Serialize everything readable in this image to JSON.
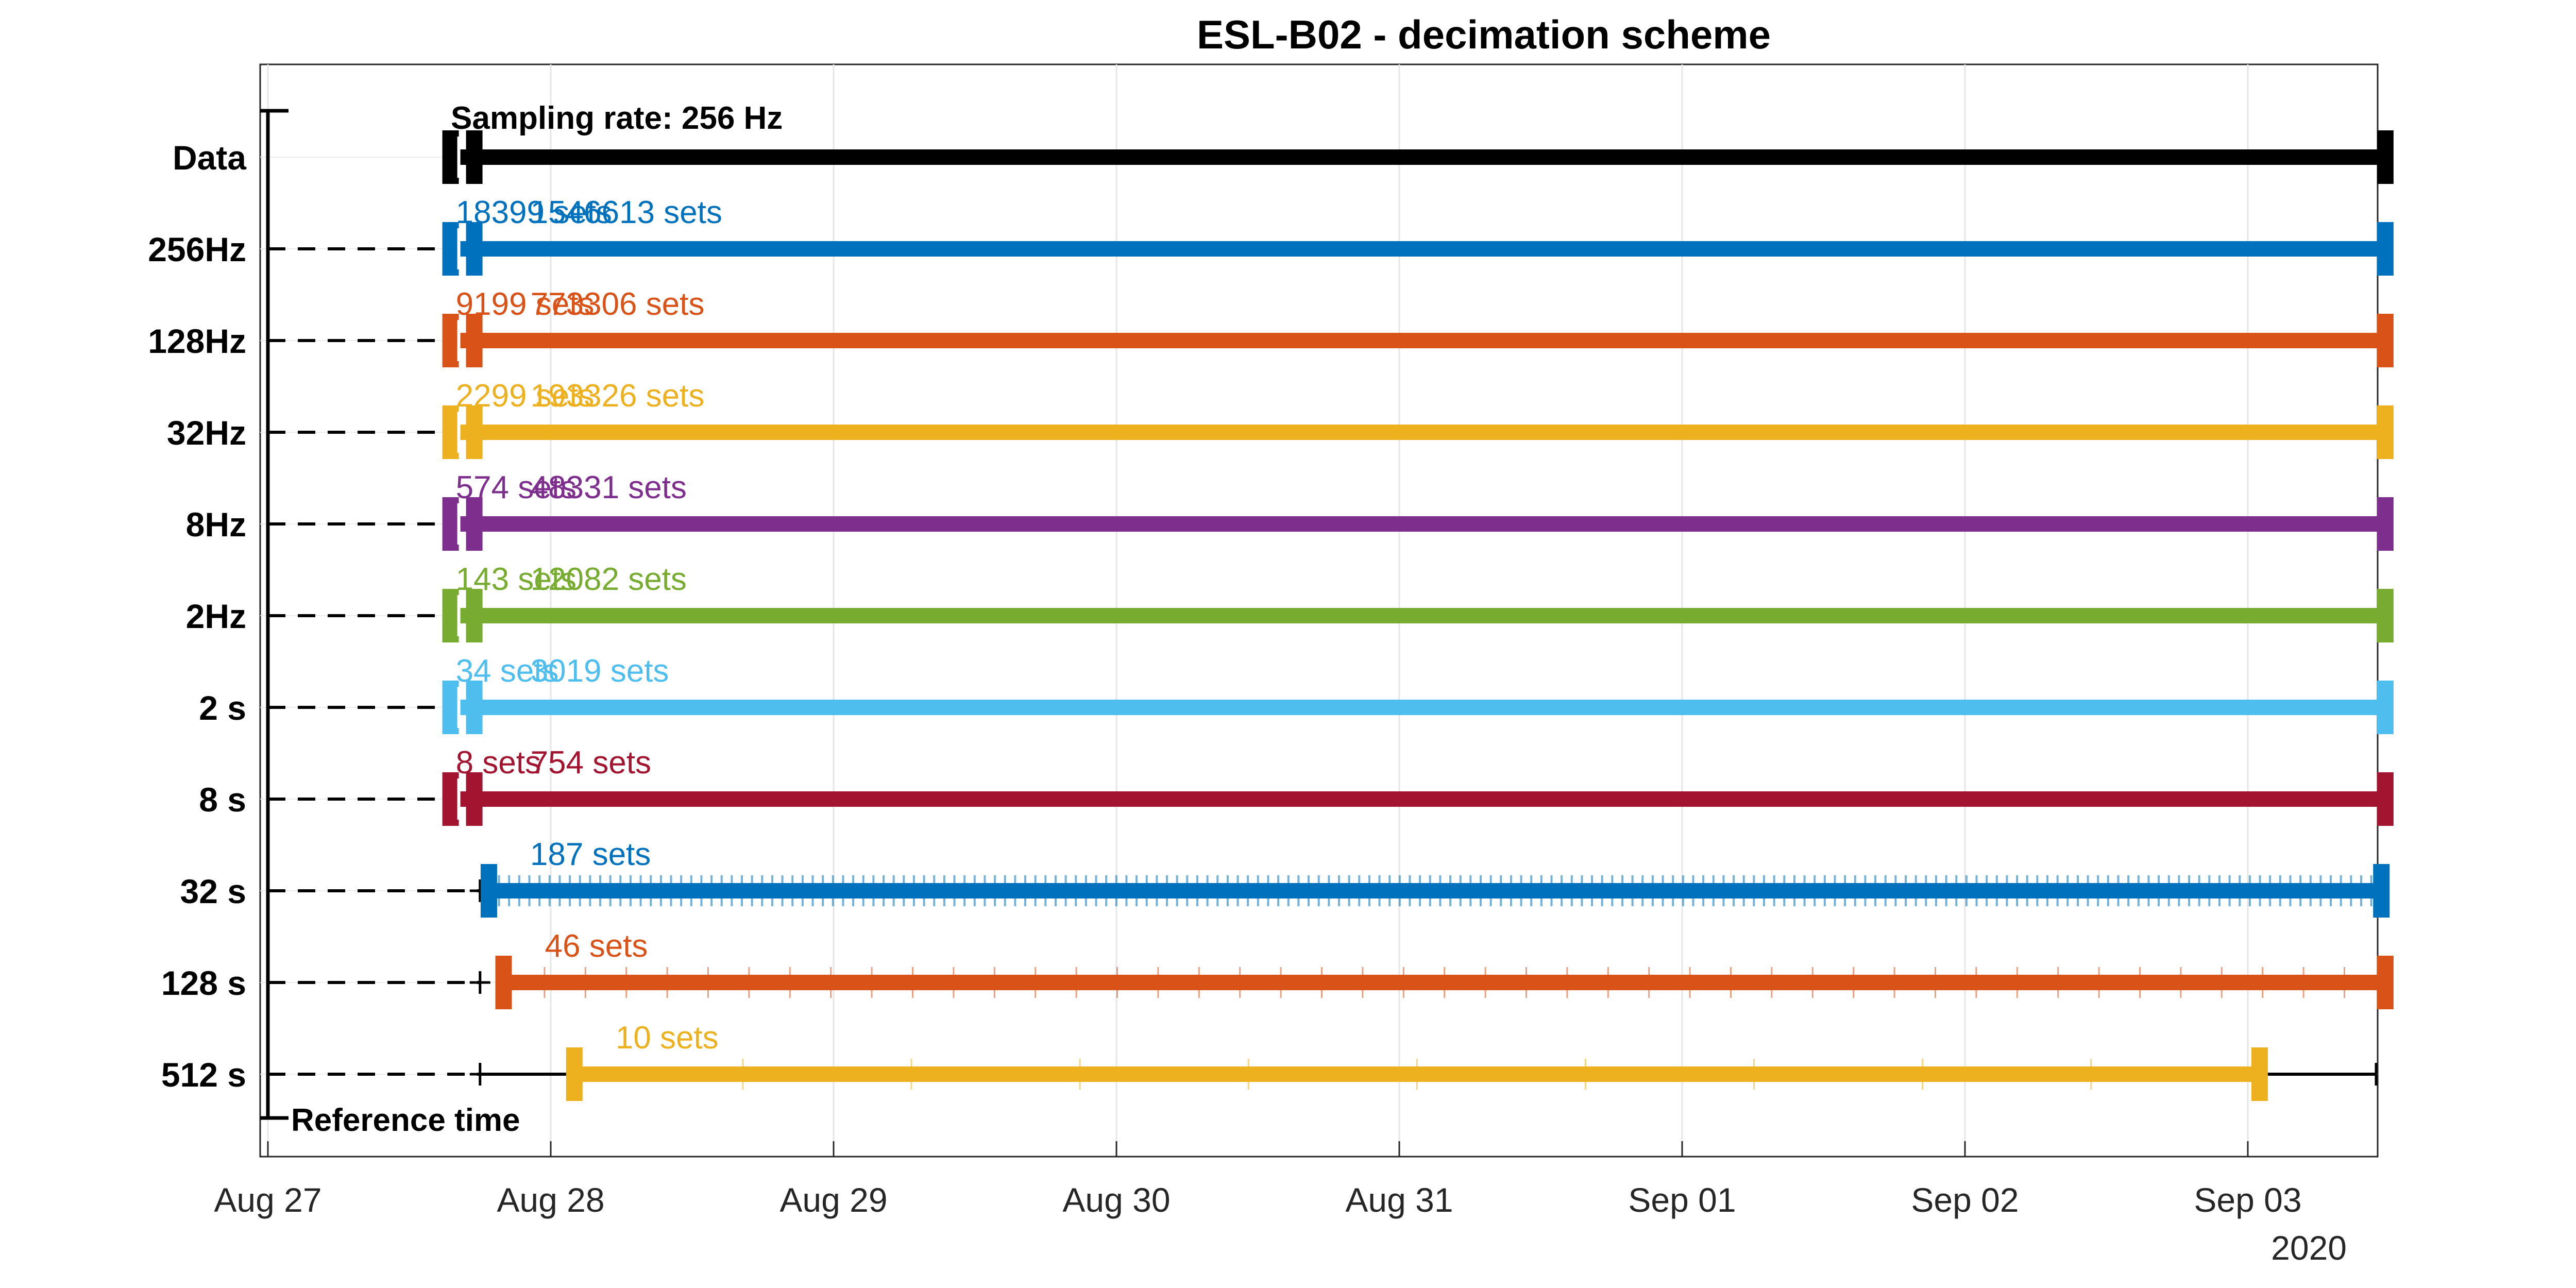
{
  "chart_data": {
    "type": "timeline",
    "title": "ESL-B02 - decimation scheme",
    "xlabel": "",
    "ylabel": "",
    "x_axis": {
      "type": "date",
      "range": [
        "2020-08-27 00:00",
        "2020-09-03 12:00"
      ],
      "ticks": [
        {
          "value": "2020-08-27",
          "label": "Aug 27"
        },
        {
          "value": "2020-08-28",
          "label": "Aug 28"
        },
        {
          "value": "2020-08-29",
          "label": "Aug 29"
        },
        {
          "value": "2020-08-30",
          "label": "Aug 30"
        },
        {
          "value": "2020-08-31",
          "label": "Aug 31"
        },
        {
          "value": "2020-09-01",
          "label": "Sep 01"
        },
        {
          "value": "2020-09-02",
          "label": "Sep 02"
        },
        {
          "value": "2020-09-03",
          "label": "Sep 03"
        }
      ],
      "year_label": "2020"
    },
    "grid": true,
    "reference_time": "2020-08-27 18:00",
    "annotations": {
      "sampling_rate": "Sampling rate: 256 Hz",
      "reference": "Reference time"
    },
    "rows": [
      {
        "name": "Data",
        "color": "#000000",
        "start": "2020-08-27 15:30",
        "end": "2020-09-03 11:40",
        "set_labels": [],
        "sub_ticks": 0
      },
      {
        "name": "256Hz",
        "color": "#0072BD",
        "start": "2020-08-27 15:30",
        "end": "2020-09-03 11:40",
        "set_labels": [
          "18399 sets",
          "1546613 sets"
        ],
        "sub_ticks": 0
      },
      {
        "name": "128Hz",
        "color": "#D95319",
        "start": "2020-08-27 15:30",
        "end": "2020-09-03 11:40",
        "set_labels": [
          "9199 sets",
          "773306 sets"
        ],
        "sub_ticks": 0
      },
      {
        "name": "32Hz",
        "color": "#EDB120",
        "start": "2020-08-27 15:30",
        "end": "2020-09-03 11:40",
        "set_labels": [
          "2299 sets",
          "193326 sets"
        ],
        "sub_ticks": 0
      },
      {
        "name": "8Hz",
        "color": "#7E2F8E",
        "start": "2020-08-27 15:30",
        "end": "2020-09-03 11:40",
        "set_labels": [
          "574 sets",
          "48331 sets"
        ],
        "sub_ticks": 0
      },
      {
        "name": "2Hz",
        "color": "#77AC30",
        "start": "2020-08-27 15:30",
        "end": "2020-09-03 11:40",
        "set_labels": [
          "143 sets",
          "12082 sets"
        ],
        "sub_ticks": 0
      },
      {
        "name": "2 s",
        "color": "#4DBEEE",
        "start": "2020-08-27 15:30",
        "end": "2020-09-03 11:40",
        "set_labels": [
          "34 sets",
          "3019 sets"
        ],
        "sub_ticks": 0
      },
      {
        "name": "8 s",
        "color": "#A2142F",
        "start": "2020-08-27 15:30",
        "end": "2020-09-03 11:40",
        "set_labels": [
          "8 sets",
          "754 sets"
        ],
        "sub_ticks": 0
      },
      {
        "name": "32 s",
        "color": "#0072BD",
        "start": "2020-08-27 18:45",
        "end": "2020-09-03 11:20",
        "set_labels": [
          "187 sets"
        ],
        "sub_ticks": 187
      },
      {
        "name": "128 s",
        "color": "#D95319",
        "start": "2020-08-27 20:00",
        "end": "2020-09-03 11:40",
        "set_labels": [
          "46 sets"
        ],
        "sub_ticks": 46
      },
      {
        "name": "512 s",
        "color": "#EDB120",
        "start": "2020-08-28 02:00",
        "end": "2020-09-03 01:00",
        "set_labels": [
          "10 sets"
        ],
        "sub_ticks": 10
      }
    ]
  }
}
